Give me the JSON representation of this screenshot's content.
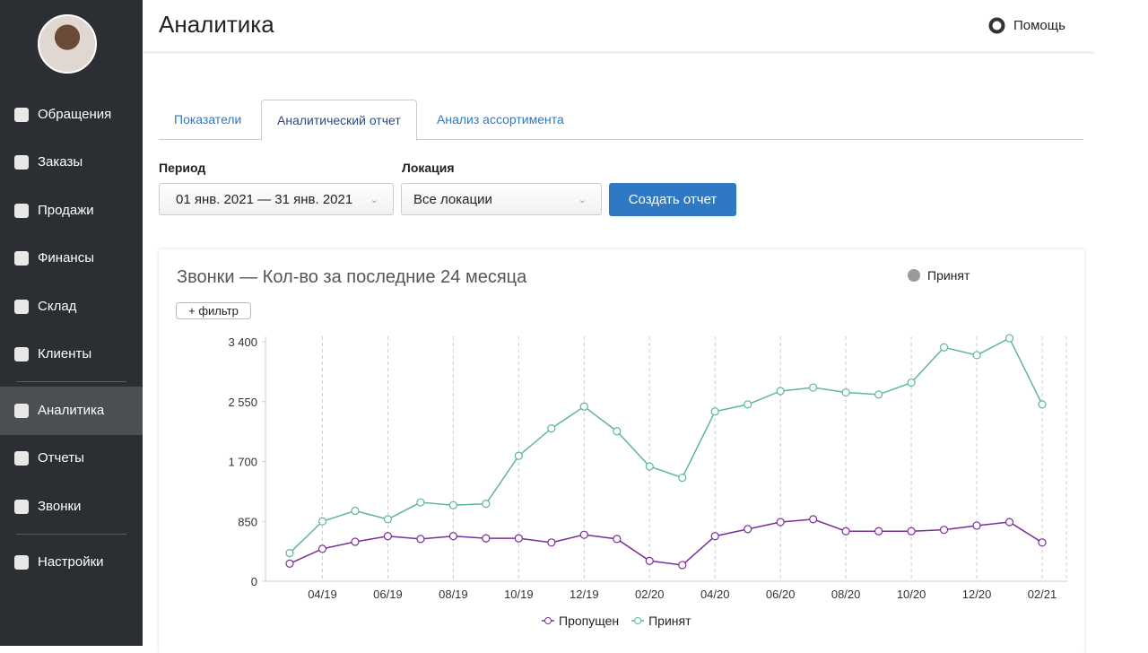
{
  "sidebar": {
    "items": [
      "Обращения",
      "Заказы",
      "Продажи",
      "Финансы",
      "Склад",
      "Клиенты",
      "Аналитика",
      "Отчеты",
      "Звонки",
      "Настройки"
    ],
    "active": "Аналитика"
  },
  "header": {
    "title": "Аналитика",
    "help": "Помощь"
  },
  "tabs": [
    "Показатели",
    "Аналитический отчет",
    "Анализ ассортимента"
  ],
  "active_tab": "Аналитический отчет",
  "form": {
    "period_label": "Период",
    "period_value": "01 янв. 2021 — 31 янв. 2021",
    "location_label": "Локация",
    "location_value": "Все локации",
    "submit": "Создать отчет"
  },
  "chart_data": {
    "type": "line",
    "title": "Звонки — Кол-во за последние 24 месяца",
    "control": "Принят",
    "filter_button": "+ фильтр",
    "categories": [
      null,
      "04/19",
      null,
      "06/19",
      null,
      "08/19",
      null,
      "10/19",
      null,
      "12/19",
      null,
      "02/20",
      null,
      "04/20",
      null,
      "06/20",
      null,
      "08/20",
      null,
      "10/20",
      null,
      "12/20",
      null,
      "02/21"
    ],
    "series": [
      {
        "name": "Пропущен",
        "color": "#7b2d9a",
        "values": [
          250,
          460,
          560,
          640,
          600,
          640,
          610,
          610,
          550,
          660,
          600,
          290,
          230,
          640,
          740,
          840,
          880,
          710,
          710,
          710,
          730,
          790,
          840,
          550
        ]
      },
      {
        "name": "Принят",
        "color": "#5cb894",
        "values": [
          400,
          850,
          1000,
          880,
          1120,
          1080,
          1100,
          1780,
          2170,
          2480,
          2130,
          1630,
          1470,
          2410,
          2510,
          2700,
          2750,
          2680,
          2650,
          2820,
          3320,
          3210,
          3450,
          2510
        ]
      }
    ],
    "ylim": [
      0,
      3400
    ],
    "yticks": [
      0,
      850,
      {
        "value": 1700,
        "label": "1 700"
      },
      {
        "value": 2550,
        "label": "2 550"
      },
      {
        "value": 3400,
        "label": "3 400"
      }
    ],
    "legend": "bottom"
  }
}
